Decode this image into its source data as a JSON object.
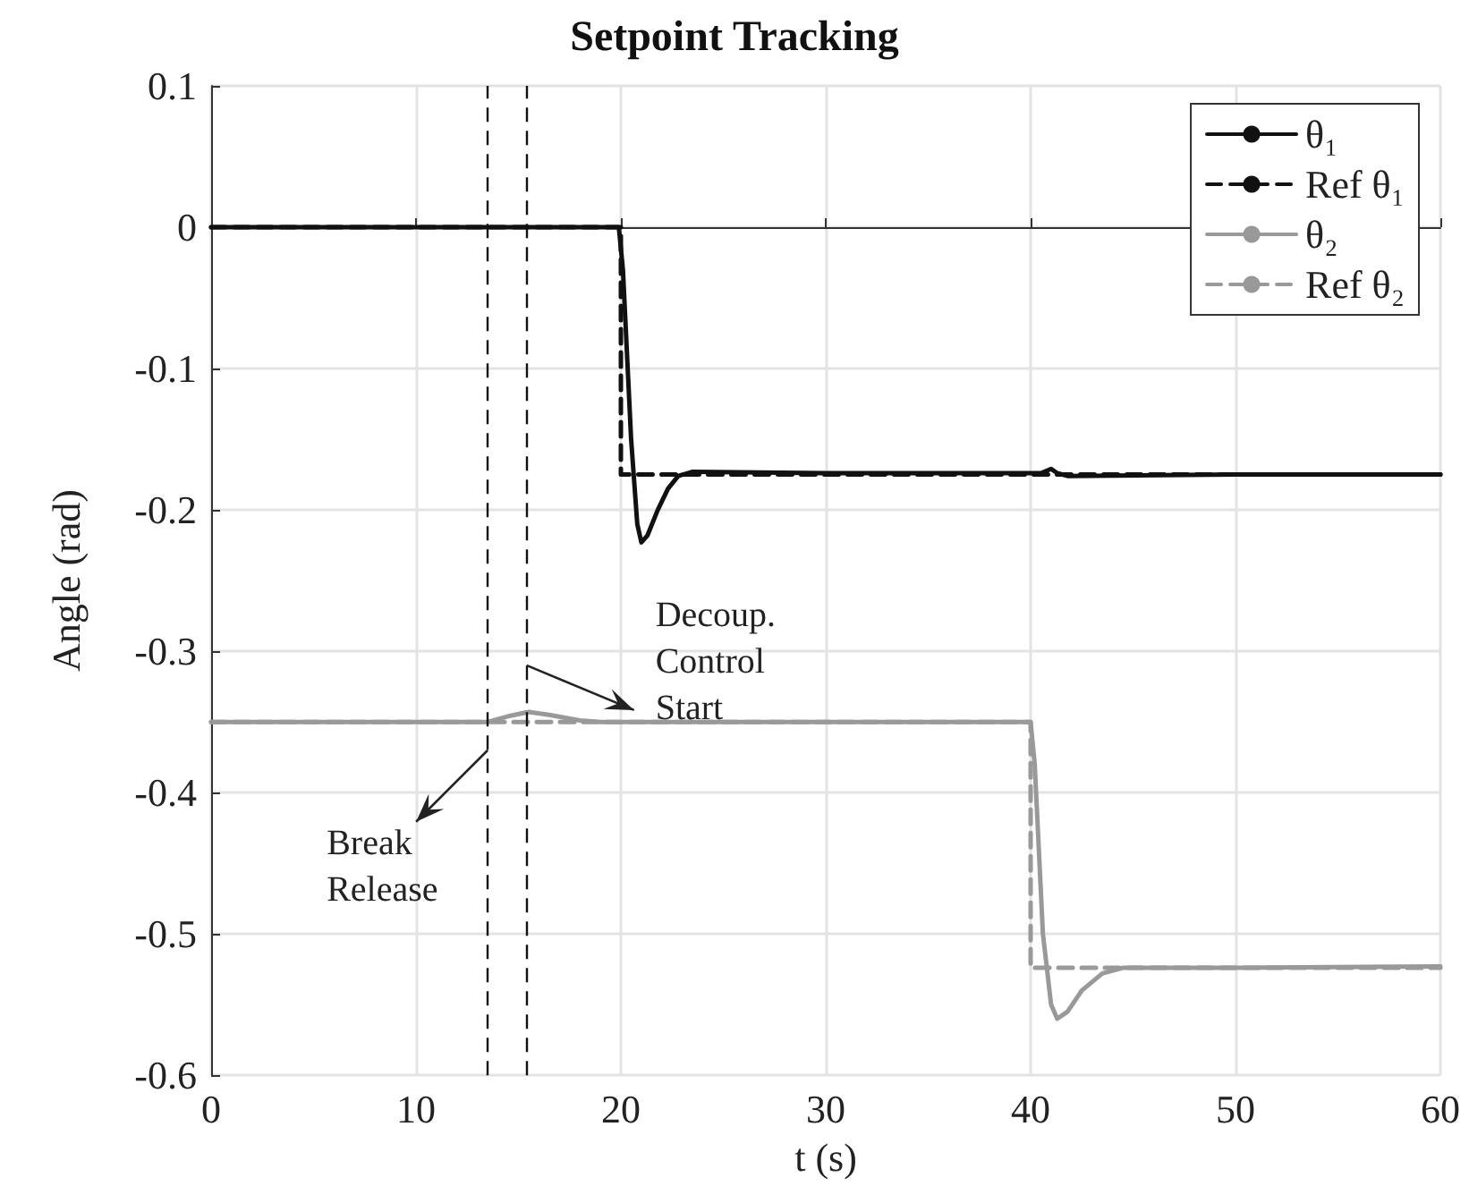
{
  "chart_data": {
    "type": "line",
    "title": "Setpoint Tracking",
    "xlabel": "t (s)",
    "ylabel": "Angle (rad)",
    "xlim": [
      0,
      60
    ],
    "xticks": [
      0,
      10,
      20,
      30,
      40,
      50,
      60
    ],
    "ylim": [
      -0.6,
      0.1
    ],
    "yticks": [
      0.1,
      0,
      -0.1,
      -0.2,
      -0.3,
      -0.4,
      -0.5,
      -0.6
    ],
    "grid": true,
    "legend": "top right",
    "marker": "none",
    "series": [
      {
        "name": "θ₁",
        "color": "#111111",
        "line_style": "solid",
        "x": [
          0,
          19.9,
          20.1,
          20.5,
          20.8,
          21.0,
          21.3,
          21.8,
          22.3,
          22.8,
          23.5,
          30,
          40.5,
          41,
          41.3,
          41.8,
          50,
          60
        ],
        "values": [
          0,
          0,
          -0.03,
          -0.15,
          -0.21,
          -0.223,
          -0.218,
          -0.2,
          -0.185,
          -0.176,
          -0.173,
          -0.174,
          -0.174,
          -0.171,
          -0.174,
          -0.176,
          -0.175,
          -0.175
        ]
      },
      {
        "name": "Ref θ₁",
        "color": "#111111",
        "line_style": "dashed",
        "x": [
          0,
          20,
          20,
          60
        ],
        "values": [
          0,
          0,
          -0.175,
          -0.175
        ]
      },
      {
        "name": "θ₂",
        "color": "#999999",
        "line_style": "solid",
        "x": [
          0,
          13.5,
          14.5,
          15.5,
          16.5,
          18,
          19,
          40,
          40.2,
          40.6,
          41,
          41.3,
          41.8,
          42.5,
          43.5,
          44.5,
          50,
          60
        ],
        "values": [
          -0.35,
          -0.35,
          -0.346,
          -0.343,
          -0.345,
          -0.349,
          -0.35,
          -0.35,
          -0.38,
          -0.5,
          -0.55,
          -0.56,
          -0.555,
          -0.54,
          -0.528,
          -0.524,
          -0.524,
          -0.523
        ]
      },
      {
        "name": "Ref θ₂",
        "color": "#999999",
        "line_style": "dashed",
        "x": [
          0,
          40,
          40,
          60
        ],
        "values": [
          -0.35,
          -0.35,
          -0.524,
          -0.524
        ]
      }
    ],
    "ref_lines": [
      {
        "axis": "x",
        "value": 13.5,
        "color": "#111111",
        "line_style": "dashed"
      },
      {
        "axis": "x",
        "value": 15.4,
        "color": "#111111",
        "line_style": "dashed"
      }
    ],
    "annotations": [
      {
        "text": "Decoup.\nControl\nStart",
        "x": 15.4,
        "y": -0.31
      },
      {
        "text": "Break\nRelease",
        "x": 13.5,
        "y": -0.37
      }
    ]
  }
}
